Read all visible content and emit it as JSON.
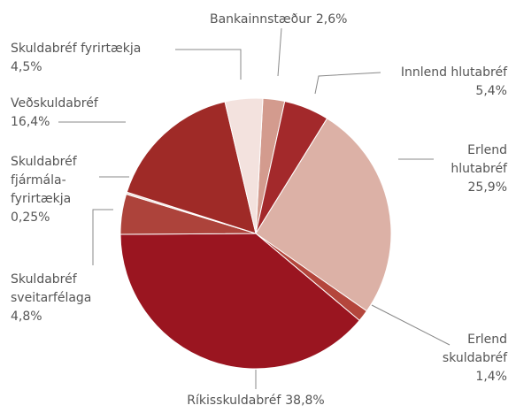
{
  "chart_data": {
    "type": "pie",
    "categories": [
      [
        "Bankainnstæður"
      ],
      [
        "Innlend hlutabréf"
      ],
      [
        "Erlend",
        "hlutabréf"
      ],
      [
        "Erlend",
        "skuldabréf"
      ],
      [
        "Ríkisskuldabréf"
      ],
      [
        "Skuldabréf",
        "sveitarfélaga"
      ],
      [
        "Skuldabréf",
        "fjármála-",
        "fyrirtækja"
      ],
      [
        "Veðskuldabréf"
      ],
      [
        "Skuldabréf fyrirtækja"
      ]
    ],
    "values": [
      2.6,
      5.4,
      25.9,
      1.4,
      38.8,
      4.8,
      0.25,
      16.4,
      4.5
    ],
    "value_labels": [
      "2,6%",
      "5,4%",
      "25,9%",
      "1,4%",
      "38,8%",
      "4,8%",
      "0,25%",
      "16,4%",
      "4,5%"
    ],
    "colors": [
      "#d39b8e",
      "#a3292b",
      "#dcb1a6",
      "#b4463c",
      "#9a1520",
      "#ad433b",
      "#eddcd7",
      "#9f2a27",
      "#f3e2de"
    ]
  }
}
